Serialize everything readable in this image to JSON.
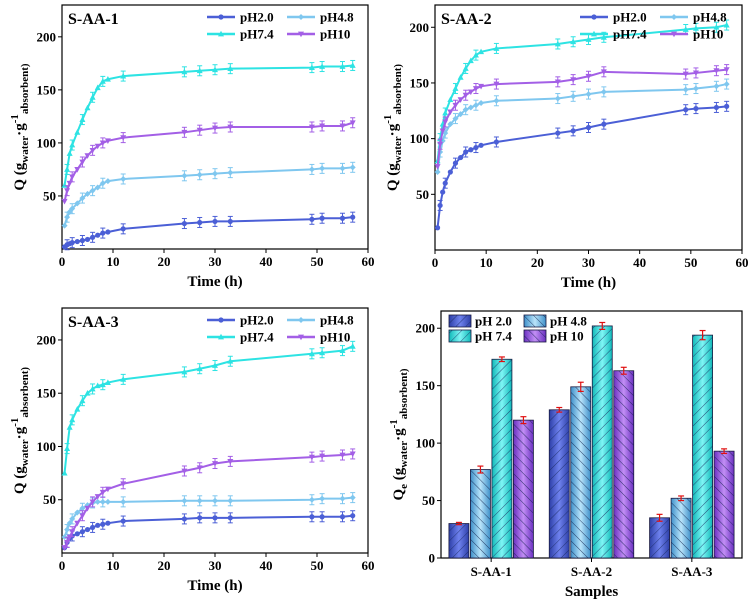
{
  "colors": {
    "pH2.0": "#4b5fd6",
    "pH4.8": "#7fc7ef",
    "pH7.4": "#2de3e3",
    "pH10": "#a35fe6",
    "errorbar_bar": "#e01010"
  },
  "chart_data": [
    {
      "type": "line",
      "panel_label": "S-AA-1",
      "xlabel": "Time (h)",
      "ylabel_main": "Q (g",
      "ylabel_sub": "water",
      "ylabel_mid": "·g",
      "ylabel_sup": "-1",
      "ylabel_end": "absorbent)",
      "xlim": [
        0,
        60
      ],
      "ylim": [
        0,
        230
      ],
      "xticks": [
        0,
        10,
        20,
        30,
        40,
        50,
        60
      ],
      "yticks": [
        50,
        100,
        150,
        200
      ],
      "x": [
        0.5,
        1,
        1.5,
        2,
        3,
        4,
        5,
        6,
        7,
        8,
        9,
        12,
        24,
        27,
        30,
        33,
        49,
        51,
        55,
        57
      ],
      "series": [
        {
          "name": "pH2.0",
          "values": [
            2,
            4,
            5,
            6,
            7,
            8,
            9,
            11,
            13,
            15,
            16,
            19,
            24,
            25,
            26,
            26,
            28,
            29,
            29,
            30
          ]
        },
        {
          "name": "pH4.8",
          "values": [
            22,
            30,
            35,
            38,
            43,
            48,
            52,
            55,
            58,
            62,
            64,
            66,
            69,
            70,
            71,
            72,
            75,
            76,
            76,
            77
          ]
        },
        {
          "name": "pH7.4",
          "values": [
            60,
            75,
            90,
            98,
            110,
            122,
            133,
            143,
            152,
            158,
            160,
            163,
            167,
            168,
            169,
            170,
            171,
            172,
            172,
            173
          ]
        },
        {
          "name": "pH10",
          "values": [
            45,
            55,
            62,
            68,
            75,
            82,
            88,
            93,
            97,
            100,
            102,
            105,
            110,
            112,
            114,
            115,
            115,
            116,
            116,
            119
          ]
        }
      ],
      "legend": [
        "pH2.0",
        "pH4.8",
        "pH7.4",
        "pH10"
      ]
    },
    {
      "type": "line",
      "panel_label": "S-AA-2",
      "xlabel": "Time (h)",
      "ylabel_main": "Q (g",
      "ylabel_sub": "water",
      "ylabel_mid": "·g",
      "ylabel_sup": "-1",
      "ylabel_end": "absorbent)",
      "xlim": [
        0,
        60
      ],
      "ylim": [
        0,
        220
      ],
      "xticks": [
        0,
        10,
        20,
        30,
        40,
        50,
        60
      ],
      "yticks": [
        50,
        100,
        150,
        200
      ],
      "x": [
        0.5,
        1,
        1.5,
        2,
        3,
        4,
        5,
        6,
        7,
        8,
        9,
        12,
        24,
        27,
        30,
        33,
        49,
        51,
        55,
        57
      ],
      "series": [
        {
          "name": "pH2.0",
          "values": [
            20,
            40,
            52,
            60,
            70,
            78,
            83,
            88,
            90,
            92,
            94,
            97,
            105,
            107,
            110,
            113,
            126,
            127,
            128,
            129
          ]
        },
        {
          "name": "pH4.8",
          "values": [
            70,
            88,
            98,
            105,
            113,
            118,
            122,
            126,
            128,
            130,
            132,
            134,
            136,
            138,
            140,
            142,
            144,
            145,
            147,
            149
          ]
        },
        {
          "name": "pH7.4",
          "values": [
            80,
            100,
            113,
            123,
            135,
            145,
            155,
            163,
            170,
            175,
            178,
            181,
            185,
            187,
            189,
            191,
            198,
            199,
            200,
            202
          ]
        },
        {
          "name": "pH10",
          "values": [
            75,
            95,
            107,
            115,
            124,
            130,
            135,
            139,
            142,
            145,
            147,
            149,
            151,
            153,
            156,
            160,
            158,
            159,
            161,
            162
          ]
        }
      ],
      "legend": [
        "pH2.0",
        "pH4.8",
        "pH7.4",
        "pH10"
      ]
    },
    {
      "type": "line",
      "panel_label": "S-AA-3",
      "xlabel": "Time (h)",
      "ylabel_main": "Q (g",
      "ylabel_sub": "water",
      "ylabel_mid": "·g",
      "ylabel_sup": "-1",
      "ylabel_end": "absorbent)",
      "xlim": [
        0,
        60
      ],
      "ylim": [
        0,
        230
      ],
      "xticks": [
        0,
        10,
        20,
        30,
        40,
        50,
        60
      ],
      "yticks": [
        50,
        100,
        150,
        200
      ],
      "x": [
        0.5,
        1,
        1.5,
        2,
        3,
        4,
        5,
        6,
        7,
        8,
        9,
        12,
        24,
        27,
        30,
        33,
        49,
        51,
        55,
        57
      ],
      "series": [
        {
          "name": "pH2.0",
          "values": [
            5,
            10,
            14,
            16,
            18,
            20,
            22,
            24,
            26,
            27,
            28,
            30,
            32,
            33,
            33,
            33,
            34,
            34,
            34,
            35
          ]
        },
        {
          "name": "pH4.8",
          "values": [
            15,
            22,
            28,
            32,
            38,
            42,
            45,
            47,
            48,
            48,
            48,
            48,
            49,
            49,
            49,
            49,
            50,
            51,
            51,
            52
          ]
        },
        {
          "name": "pH7.4",
          "values": [
            75,
            98,
            118,
            125,
            135,
            143,
            150,
            154,
            157,
            158,
            160,
            163,
            170,
            173,
            176,
            180,
            187,
            188,
            190,
            194
          ]
        },
        {
          "name": "pH10",
          "values": [
            5,
            10,
            15,
            20,
            28,
            35,
            42,
            48,
            53,
            57,
            60,
            65,
            77,
            80,
            84,
            86,
            90,
            91,
            92,
            93
          ]
        }
      ],
      "legend": [
        "pH2.0",
        "pH4.8",
        "pH7.4",
        "pH10"
      ]
    },
    {
      "type": "bar",
      "xlabel": "Samples",
      "ylabel_main": "Q",
      "ylabel_e": "e",
      "ylabel_paren": " (g",
      "ylabel_sub": "water",
      "ylabel_mid": "·g",
      "ylabel_sup": "-1",
      "ylabel_end": "absorbent)",
      "ylim": [
        0,
        215
      ],
      "yticks": [
        0,
        50,
        100,
        150,
        200
      ],
      "categories": [
        "S-AA-1",
        "S-AA-2",
        "S-AA-3"
      ],
      "series": [
        {
          "name": "pH 2.0",
          "values": [
            30,
            129,
            35
          ]
        },
        {
          "name": "pH 4.8",
          "values": [
            77,
            149,
            52
          ]
        },
        {
          "name": "pH 7.4",
          "values": [
            173,
            202,
            194
          ]
        },
        {
          "name": "pH 10",
          "values": [
            120,
            163,
            93
          ]
        }
      ],
      "errors": [
        [
          1,
          2,
          3
        ],
        [
          3,
          4,
          2
        ],
        [
          2,
          3,
          4
        ],
        [
          3,
          3,
          2
        ]
      ],
      "legend": [
        "pH 2.0",
        "pH 4.8",
        "pH 7.4",
        "pH 10"
      ]
    }
  ]
}
